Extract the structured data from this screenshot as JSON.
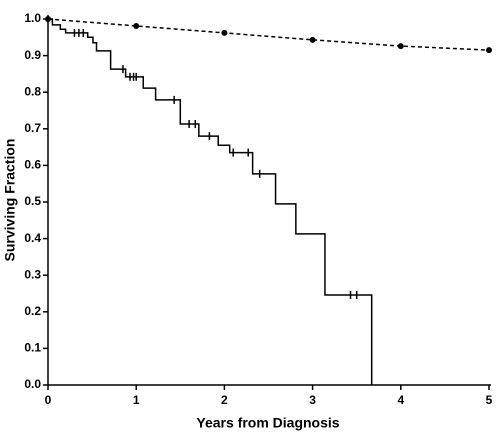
{
  "chart_data": {
    "type": "line",
    "xlabel": "Years from  Diagnosis",
    "ylabel": "Surviving Fraction",
    "xlim": [
      0,
      5
    ],
    "ylim": [
      0,
      1
    ],
    "xticks": [
      0,
      1,
      2,
      3,
      4,
      5
    ],
    "yticks": [
      {
        "value": 0,
        "label": "0.0"
      },
      0.1,
      0.2,
      0.3,
      0.4,
      0.5,
      0.6,
      0.7,
      0.8,
      0.9,
      {
        "value": 1,
        "label": "1.0"
      }
    ],
    "series": [
      {
        "style": "step",
        "color": "#000000",
        "x": [
          0,
          0.05,
          0.14,
          0.2,
          0.45,
          0.51,
          0.55,
          0.71,
          0.88,
          1.08,
          1.22,
          1.5,
          1.71,
          1.93,
          2.06,
          2.32,
          2.58,
          2.81,
          3.14,
          3.67
        ],
        "values": [
          1.0,
          0.984,
          0.972,
          0.962,
          0.95,
          0.935,
          0.913,
          0.863,
          0.842,
          0.811,
          0.779,
          0.713,
          0.68,
          0.655,
          0.635,
          0.577,
          0.495,
          0.413,
          0.246,
          0
        ],
        "censor_x": [
          0.3,
          0.35,
          0.4,
          0.85,
          0.93,
          0.97,
          1.0,
          1.43,
          1.6,
          1.67,
          1.83,
          2.1,
          2.27,
          2.4,
          3.43,
          3.5
        ],
        "censor_values": [
          0.962,
          0.962,
          0.962,
          0.863,
          0.842,
          0.842,
          0.842,
          0.779,
          0.713,
          0.713,
          0.68,
          0.635,
          0.635,
          0.577,
          0.246,
          0.246
        ]
      },
      {
        "style": "dashed",
        "color": "#000000",
        "x": [
          0,
          1,
          2,
          3,
          4,
          5
        ],
        "values": [
          1.0,
          0.981,
          0.962,
          0.943,
          0.926,
          0.915
        ]
      }
    ]
  }
}
